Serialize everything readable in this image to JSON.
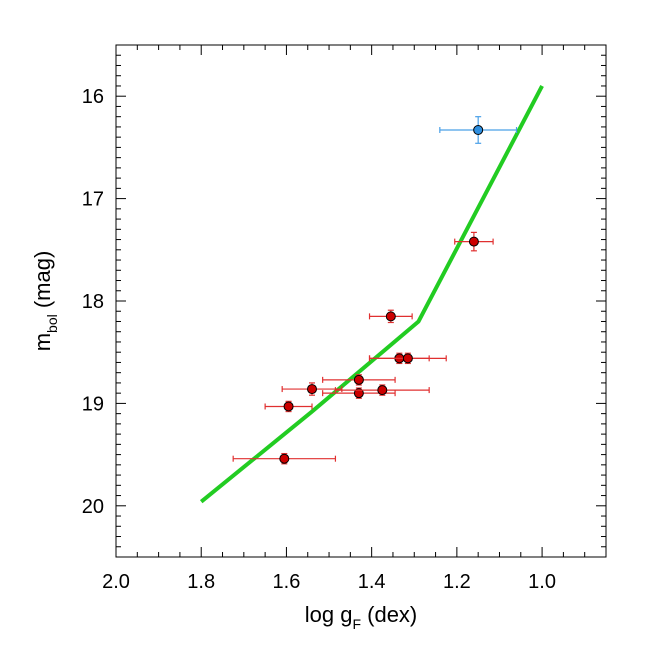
{
  "chart_data": {
    "type": "scatter",
    "title": "",
    "xlabel": {
      "main": "log g",
      "sub": "F",
      "unit": " (dex)"
    },
    "ylabel": {
      "main": "m",
      "sub": "bol",
      "unit": " (mag)"
    },
    "xlim": [
      2.0,
      0.85
    ],
    "ylim": [
      20.5,
      15.5
    ],
    "x_reversed": true,
    "y_reversed": true,
    "xticks": [
      2.0,
      1.8,
      1.6,
      1.4,
      1.2,
      1.0
    ],
    "xtick_labels": [
      "2.0",
      "1.8",
      "1.6",
      "1.4",
      "1.2",
      "1.0"
    ],
    "yticks": [
      16,
      17,
      18,
      19,
      20
    ],
    "ytick_labels": [
      "16",
      "17",
      "18",
      "19",
      "20"
    ],
    "grid": false,
    "line": {
      "color": "#22cc22",
      "x": [
        1.8,
        1.54,
        1.29,
        1.0
      ],
      "y": [
        19.96,
        19.08,
        18.2,
        15.9
      ]
    },
    "series": [
      {
        "color": "#cc0000",
        "errcolor": "#e03030",
        "points": [
          {
            "x": 1.16,
            "y": 17.42,
            "xerr": 0.045,
            "yerr": 0.09
          },
          {
            "x": 1.355,
            "y": 18.15,
            "xerr": 0.05,
            "yerr": 0.06
          },
          {
            "x": 1.335,
            "y": 18.56,
            "xerr": 0.07,
            "yerr": 0.05
          },
          {
            "x": 1.315,
            "y": 18.56,
            "xerr": 0.09,
            "yerr": 0.05
          },
          {
            "x": 1.43,
            "y": 18.77,
            "xerr": 0.085,
            "yerr": 0.05
          },
          {
            "x": 1.54,
            "y": 18.86,
            "xerr": 0.07,
            "yerr": 0.06
          },
          {
            "x": 1.43,
            "y": 18.9,
            "xerr": 0.085,
            "yerr": 0.05
          },
          {
            "x": 1.375,
            "y": 18.87,
            "xerr": 0.11,
            "yerr": 0.05
          },
          {
            "x": 1.595,
            "y": 19.03,
            "xerr": 0.055,
            "yerr": 0.05
          },
          {
            "x": 1.605,
            "y": 19.54,
            "xerr": 0.12,
            "yerr": 0.05
          }
        ]
      },
      {
        "color": "#2e8fe0",
        "errcolor": "#4aa0e8",
        "points": [
          {
            "x": 1.15,
            "y": 16.33,
            "xerr": 0.09,
            "yerr": 0.13
          }
        ]
      }
    ]
  }
}
